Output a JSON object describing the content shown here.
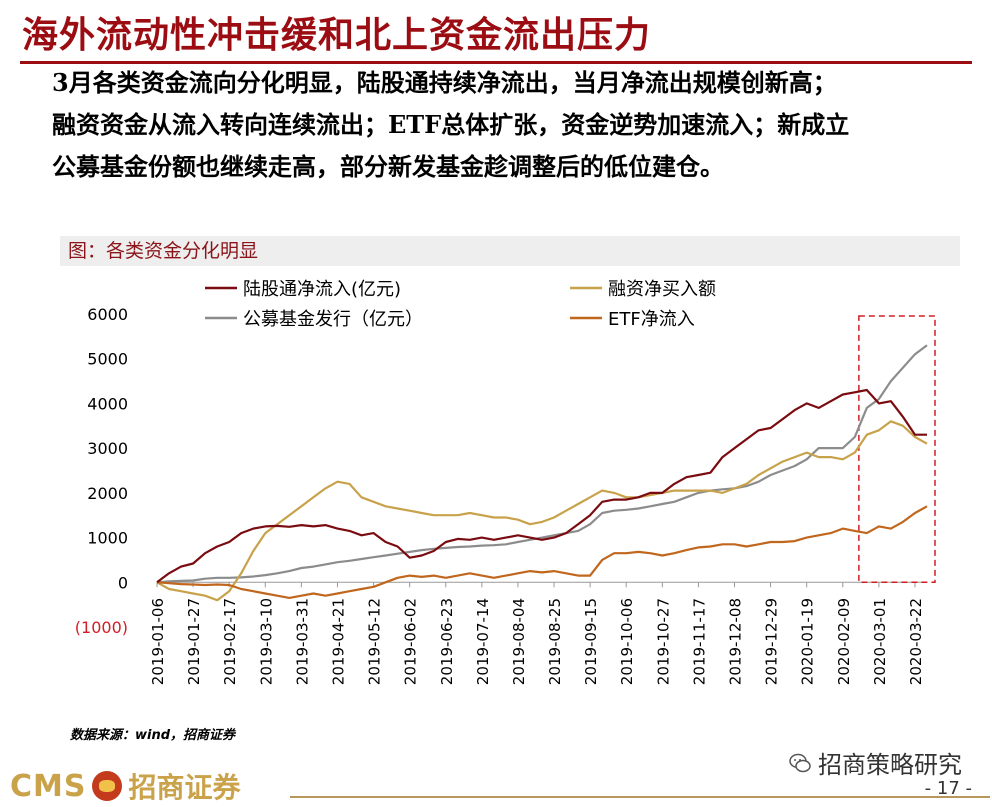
{
  "slide": {
    "title": "海外流动性冲击缓和北上资金流出压力",
    "summary_lines": [
      "3月各类资金流向分化明显，陆股通持续净流出，当月净流出规模创新高；",
      "融资资金从流入转向连续流出；ETF总体扩张，资金逆势加速流入；新成立",
      "公募基金份额也继续走高，部分新发基金趁调整后的低位建仓。"
    ],
    "source": "数据来源：wind，招商证券",
    "page_number": "- 17 -",
    "wechat": "招商策略研究",
    "brand_cms": "CMS",
    "brand_name": "招商证券"
  },
  "colors": {
    "title": "#9b0d12",
    "lugutong": "#7a0b10",
    "rongzi": "#c8a24a",
    "gongmu": "#8c8c8c",
    "etf": "#c0661d",
    "highlight": "#d01f26"
  },
  "chart_data": {
    "type": "line",
    "title": "图：各类资金分化明显",
    "ylim": [
      -1000,
      6000
    ],
    "y_ticks": [
      -1000,
      0,
      1000,
      2000,
      3000,
      4000,
      5000,
      6000
    ],
    "y_tick_labels": [
      "(1000)",
      "0",
      "1000",
      "2000",
      "3000",
      "4000",
      "5000",
      "6000"
    ],
    "x_start": "2019-01-06",
    "x_end": "2020-03-29",
    "x_tick_labels": [
      "2019-01-06",
      "2019-01-27",
      "2019-02-17",
      "2019-03-10",
      "2019-03-31",
      "2019-04-21",
      "2019-05-12",
      "2019-06-02",
      "2019-06-23",
      "2019-07-14",
      "2019-08-04",
      "2019-08-25",
      "2019-09-15",
      "2019-10-06",
      "2019-10-27",
      "2019-11-17",
      "2019-12-08",
      "2019-12-29",
      "2020-01-19",
      "2020-02-09",
      "2020-03-01",
      "2020-03-22"
    ],
    "grid": false,
    "legend_position": "top",
    "highlight_range": [
      "2020-03-01",
      "2020-03-29"
    ],
    "series": [
      {
        "name": "陆股通净流入(亿元)",
        "color_key": "lugutong",
        "points": [
          [
            "2019-01-06",
            0
          ],
          [
            "2019-01-13",
            200
          ],
          [
            "2019-01-20",
            350
          ],
          [
            "2019-01-27",
            420
          ],
          [
            "2019-02-03",
            650
          ],
          [
            "2019-02-10",
            800
          ],
          [
            "2019-02-17",
            900
          ],
          [
            "2019-02-24",
            1100
          ],
          [
            "2019-03-03",
            1200
          ],
          [
            "2019-03-10",
            1250
          ],
          [
            "2019-03-17",
            1260
          ],
          [
            "2019-03-24",
            1240
          ],
          [
            "2019-03-31",
            1280
          ],
          [
            "2019-04-07",
            1250
          ],
          [
            "2019-04-14",
            1280
          ],
          [
            "2019-04-21",
            1200
          ],
          [
            "2019-04-28",
            1150
          ],
          [
            "2019-05-05",
            1050
          ],
          [
            "2019-05-12",
            1100
          ],
          [
            "2019-05-19",
            900
          ],
          [
            "2019-05-26",
            800
          ],
          [
            "2019-06-02",
            550
          ],
          [
            "2019-06-09",
            600
          ],
          [
            "2019-06-16",
            700
          ],
          [
            "2019-06-23",
            900
          ],
          [
            "2019-06-30",
            970
          ],
          [
            "2019-07-07",
            950
          ],
          [
            "2019-07-14",
            1000
          ],
          [
            "2019-07-21",
            950
          ],
          [
            "2019-07-28",
            1000
          ],
          [
            "2019-08-04",
            1050
          ],
          [
            "2019-08-11",
            1000
          ],
          [
            "2019-08-18",
            950
          ],
          [
            "2019-08-25",
            1000
          ],
          [
            "2019-09-01",
            1100
          ],
          [
            "2019-09-08",
            1300
          ],
          [
            "2019-09-15",
            1500
          ],
          [
            "2019-09-22",
            1800
          ],
          [
            "2019-09-29",
            1850
          ],
          [
            "2019-10-06",
            1850
          ],
          [
            "2019-10-13",
            1900
          ],
          [
            "2019-10-20",
            2000
          ],
          [
            "2019-10-27",
            2000
          ],
          [
            "2019-11-03",
            2200
          ],
          [
            "2019-11-10",
            2350
          ],
          [
            "2019-11-17",
            2400
          ],
          [
            "2019-11-24",
            2450
          ],
          [
            "2019-12-01",
            2800
          ],
          [
            "2019-12-08",
            3000
          ],
          [
            "2019-12-15",
            3200
          ],
          [
            "2019-12-22",
            3400
          ],
          [
            "2019-12-29",
            3450
          ],
          [
            "2020-01-05",
            3650
          ],
          [
            "2020-01-12",
            3850
          ],
          [
            "2020-01-19",
            4000
          ],
          [
            "2020-01-26",
            3900
          ],
          [
            "2020-02-02",
            4050
          ],
          [
            "2020-02-09",
            4200
          ],
          [
            "2020-02-16",
            4250
          ],
          [
            "2020-02-23",
            4300
          ],
          [
            "2020-03-01",
            4000
          ],
          [
            "2020-03-08",
            4050
          ],
          [
            "2020-03-15",
            3700
          ],
          [
            "2020-03-22",
            3300
          ],
          [
            "2020-03-29",
            3300
          ]
        ]
      },
      {
        "name": "融资净买入额",
        "color_key": "rongzi",
        "points": [
          [
            "2019-01-06",
            0
          ],
          [
            "2019-01-13",
            -150
          ],
          [
            "2019-01-20",
            -200
          ],
          [
            "2019-01-27",
            -250
          ],
          [
            "2019-02-03",
            -300
          ],
          [
            "2019-02-10",
            -400
          ],
          [
            "2019-02-17",
            -200
          ],
          [
            "2019-02-24",
            200
          ],
          [
            "2019-03-03",
            700
          ],
          [
            "2019-03-10",
            1100
          ],
          [
            "2019-03-17",
            1300
          ],
          [
            "2019-03-24",
            1500
          ],
          [
            "2019-03-31",
            1700
          ],
          [
            "2019-04-07",
            1900
          ],
          [
            "2019-04-14",
            2100
          ],
          [
            "2019-04-21",
            2250
          ],
          [
            "2019-04-28",
            2200
          ],
          [
            "2019-05-05",
            1900
          ],
          [
            "2019-05-12",
            1800
          ],
          [
            "2019-05-19",
            1700
          ],
          [
            "2019-05-26",
            1650
          ],
          [
            "2019-06-02",
            1600
          ],
          [
            "2019-06-09",
            1550
          ],
          [
            "2019-06-16",
            1500
          ],
          [
            "2019-06-23",
            1500
          ],
          [
            "2019-06-30",
            1500
          ],
          [
            "2019-07-07",
            1550
          ],
          [
            "2019-07-14",
            1500
          ],
          [
            "2019-07-21",
            1450
          ],
          [
            "2019-07-28",
            1450
          ],
          [
            "2019-08-04",
            1400
          ],
          [
            "2019-08-11",
            1300
          ],
          [
            "2019-08-18",
            1350
          ],
          [
            "2019-08-25",
            1450
          ],
          [
            "2019-09-01",
            1600
          ],
          [
            "2019-09-08",
            1750
          ],
          [
            "2019-09-15",
            1900
          ],
          [
            "2019-09-22",
            2050
          ],
          [
            "2019-09-29",
            2000
          ],
          [
            "2019-10-06",
            1900
          ],
          [
            "2019-10-13",
            1900
          ],
          [
            "2019-10-20",
            1950
          ],
          [
            "2019-10-27",
            2000
          ],
          [
            "2019-11-03",
            2050
          ],
          [
            "2019-11-10",
            2050
          ],
          [
            "2019-11-17",
            2050
          ],
          [
            "2019-11-24",
            2050
          ],
          [
            "2019-12-01",
            2000
          ],
          [
            "2019-12-08",
            2100
          ],
          [
            "2019-12-15",
            2200
          ],
          [
            "2019-12-22",
            2400
          ],
          [
            "2019-12-29",
            2550
          ],
          [
            "2020-01-05",
            2700
          ],
          [
            "2020-01-12",
            2800
          ],
          [
            "2020-01-19",
            2900
          ],
          [
            "2020-01-26",
            2800
          ],
          [
            "2020-02-02",
            2800
          ],
          [
            "2020-02-09",
            2750
          ],
          [
            "2020-02-16",
            2900
          ],
          [
            "2020-02-23",
            3300
          ],
          [
            "2020-03-01",
            3400
          ],
          [
            "2020-03-08",
            3600
          ],
          [
            "2020-03-15",
            3500
          ],
          [
            "2020-03-22",
            3250
          ],
          [
            "2020-03-29",
            3100
          ]
        ]
      },
      {
        "name": "公募基金发行（亿元）",
        "color_key": "gongmu",
        "points": [
          [
            "2019-01-06",
            0
          ],
          [
            "2019-01-13",
            20
          ],
          [
            "2019-01-20",
            30
          ],
          [
            "2019-01-27",
            40
          ],
          [
            "2019-02-03",
            80
          ],
          [
            "2019-02-10",
            100
          ],
          [
            "2019-02-17",
            100
          ],
          [
            "2019-02-24",
            110
          ],
          [
            "2019-03-03",
            130
          ],
          [
            "2019-03-10",
            160
          ],
          [
            "2019-03-17",
            200
          ],
          [
            "2019-03-24",
            250
          ],
          [
            "2019-03-31",
            320
          ],
          [
            "2019-04-07",
            350
          ],
          [
            "2019-04-14",
            400
          ],
          [
            "2019-04-21",
            450
          ],
          [
            "2019-04-28",
            480
          ],
          [
            "2019-05-05",
            520
          ],
          [
            "2019-05-12",
            560
          ],
          [
            "2019-05-19",
            600
          ],
          [
            "2019-05-26",
            640
          ],
          [
            "2019-06-02",
            680
          ],
          [
            "2019-06-09",
            720
          ],
          [
            "2019-06-16",
            750
          ],
          [
            "2019-06-23",
            770
          ],
          [
            "2019-06-30",
            790
          ],
          [
            "2019-07-07",
            800
          ],
          [
            "2019-07-14",
            820
          ],
          [
            "2019-07-21",
            830
          ],
          [
            "2019-07-28",
            850
          ],
          [
            "2019-08-04",
            900
          ],
          [
            "2019-08-11",
            950
          ],
          [
            "2019-08-18",
            1000
          ],
          [
            "2019-08-25",
            1050
          ],
          [
            "2019-09-01",
            1100
          ],
          [
            "2019-09-08",
            1150
          ],
          [
            "2019-09-15",
            1300
          ],
          [
            "2019-09-22",
            1550
          ],
          [
            "2019-09-29",
            1600
          ],
          [
            "2019-10-06",
            1620
          ],
          [
            "2019-10-13",
            1650
          ],
          [
            "2019-10-20",
            1700
          ],
          [
            "2019-10-27",
            1750
          ],
          [
            "2019-11-03",
            1800
          ],
          [
            "2019-11-10",
            1900
          ],
          [
            "2019-11-17",
            2000
          ],
          [
            "2019-11-24",
            2050
          ],
          [
            "2019-12-01",
            2080
          ],
          [
            "2019-12-08",
            2100
          ],
          [
            "2019-12-15",
            2150
          ],
          [
            "2019-12-22",
            2250
          ],
          [
            "2019-12-29",
            2400
          ],
          [
            "2020-01-05",
            2500
          ],
          [
            "2020-01-12",
            2600
          ],
          [
            "2020-01-19",
            2750
          ],
          [
            "2020-01-26",
            3000
          ],
          [
            "2020-02-02",
            3000
          ],
          [
            "2020-02-09",
            3000
          ],
          [
            "2020-02-16",
            3250
          ],
          [
            "2020-02-23",
            3900
          ],
          [
            "2020-03-01",
            4100
          ],
          [
            "2020-03-08",
            4500
          ],
          [
            "2020-03-15",
            4800
          ],
          [
            "2020-03-22",
            5100
          ],
          [
            "2020-03-29",
            5300
          ]
        ]
      },
      {
        "name": "ETF净流入",
        "color_key": "etf",
        "points": [
          [
            "2019-01-06",
            0
          ],
          [
            "2019-01-13",
            -20
          ],
          [
            "2019-01-20",
            -40
          ],
          [
            "2019-01-27",
            -50
          ],
          [
            "2019-02-03",
            -60
          ],
          [
            "2019-02-10",
            -50
          ],
          [
            "2019-02-17",
            -60
          ],
          [
            "2019-02-24",
            -150
          ],
          [
            "2019-03-03",
            -200
          ],
          [
            "2019-03-10",
            -250
          ],
          [
            "2019-03-17",
            -300
          ],
          [
            "2019-03-24",
            -350
          ],
          [
            "2019-03-31",
            -300
          ],
          [
            "2019-04-07",
            -250
          ],
          [
            "2019-04-14",
            -300
          ],
          [
            "2019-04-21",
            -250
          ],
          [
            "2019-04-28",
            -200
          ],
          [
            "2019-05-05",
            -150
          ],
          [
            "2019-05-12",
            -100
          ],
          [
            "2019-05-19",
            0
          ],
          [
            "2019-05-26",
            100
          ],
          [
            "2019-06-02",
            150
          ],
          [
            "2019-06-09",
            120
          ],
          [
            "2019-06-16",
            150
          ],
          [
            "2019-06-23",
            100
          ],
          [
            "2019-06-30",
            150
          ],
          [
            "2019-07-07",
            200
          ],
          [
            "2019-07-14",
            150
          ],
          [
            "2019-07-21",
            100
          ],
          [
            "2019-07-28",
            150
          ],
          [
            "2019-08-04",
            200
          ],
          [
            "2019-08-11",
            250
          ],
          [
            "2019-08-18",
            220
          ],
          [
            "2019-08-25",
            250
          ],
          [
            "2019-09-01",
            200
          ],
          [
            "2019-09-08",
            150
          ],
          [
            "2019-09-15",
            150
          ],
          [
            "2019-09-22",
            500
          ],
          [
            "2019-09-29",
            650
          ],
          [
            "2019-10-06",
            650
          ],
          [
            "2019-10-13",
            680
          ],
          [
            "2019-10-20",
            650
          ],
          [
            "2019-10-27",
            600
          ],
          [
            "2019-11-03",
            650
          ],
          [
            "2019-11-10",
            720
          ],
          [
            "2019-11-17",
            780
          ],
          [
            "2019-11-24",
            800
          ],
          [
            "2019-12-01",
            850
          ],
          [
            "2019-12-08",
            850
          ],
          [
            "2019-12-15",
            800
          ],
          [
            "2019-12-22",
            850
          ],
          [
            "2019-12-29",
            900
          ],
          [
            "2020-01-05",
            900
          ],
          [
            "2020-01-12",
            920
          ],
          [
            "2020-01-19",
            1000
          ],
          [
            "2020-01-26",
            1050
          ],
          [
            "2020-02-02",
            1100
          ],
          [
            "2020-02-09",
            1200
          ],
          [
            "2020-02-16",
            1150
          ],
          [
            "2020-02-23",
            1100
          ],
          [
            "2020-03-01",
            1250
          ],
          [
            "2020-03-08",
            1200
          ],
          [
            "2020-03-15",
            1350
          ],
          [
            "2020-03-22",
            1550
          ],
          [
            "2020-03-29",
            1700
          ]
        ]
      }
    ]
  }
}
